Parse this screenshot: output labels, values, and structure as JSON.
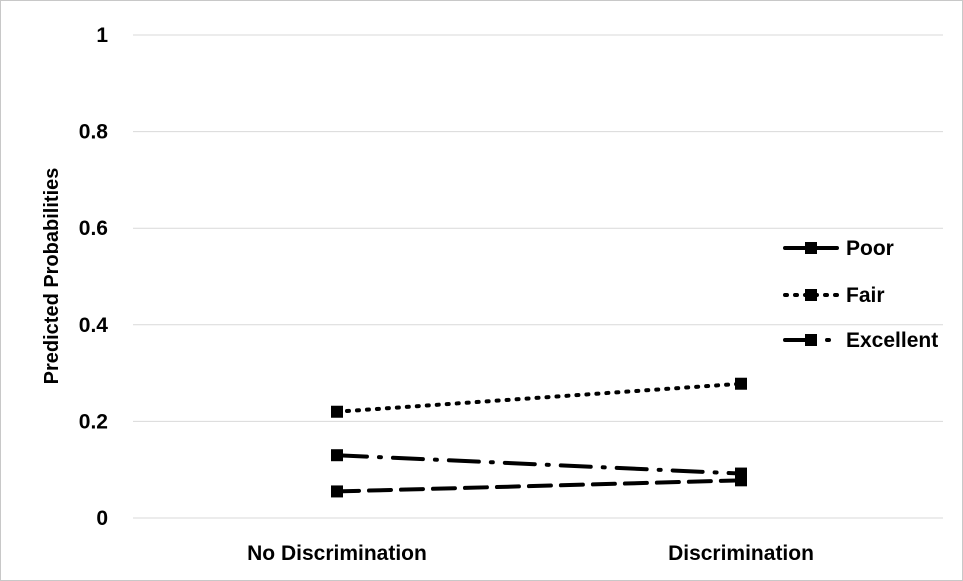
{
  "chart_data": {
    "type": "line",
    "title": "",
    "xlabel": "",
    "ylabel": "Predicted Probabilities",
    "categories": [
      "No Discrimination",
      "Discrimination"
    ],
    "ylim": [
      0,
      1
    ],
    "yticks": [
      "0",
      "0.2",
      "0.4",
      "0.6",
      "0.8",
      "1"
    ],
    "grid": true,
    "legend_position": "right",
    "series": [
      {
        "name": "Poor",
        "values": [
          0.055,
          0.078
        ],
        "dash": "dashed",
        "marker": "square",
        "color": "#000000"
      },
      {
        "name": "Fair",
        "values": [
          0.22,
          0.278
        ],
        "dash": "dotted",
        "marker": "square",
        "color": "#000000"
      },
      {
        "name": "Excellent",
        "values": [
          0.13,
          0.092
        ],
        "dash": "long-dash-dot",
        "marker": "square",
        "color": "#000000"
      }
    ]
  }
}
